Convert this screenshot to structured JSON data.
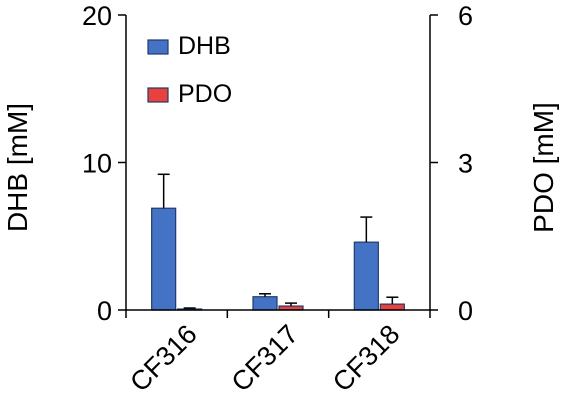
{
  "chart_data": {
    "type": "bar",
    "categories": [
      "CF316",
      "CF317",
      "CF318"
    ],
    "series": [
      {
        "name": "DHB",
        "axis": "left",
        "color": "#4472C4",
        "values": [
          6.9,
          0.9,
          4.6
        ],
        "error": [
          2.3,
          0.2,
          1.7
        ]
      },
      {
        "name": "PDO",
        "axis": "right",
        "color": "#E8423F",
        "values": [
          0.02,
          0.08,
          0.12
        ],
        "error": [
          0.02,
          0.06,
          0.14
        ]
      }
    ],
    "ylabel": "DHB [mM]",
    "y2label": "PDO [mM]",
    "ylim": [
      0,
      20
    ],
    "y2lim": [
      0,
      6
    ],
    "yticks": [
      "0",
      "10",
      "20"
    ],
    "y2ticks": [
      "0",
      "3",
      "6"
    ],
    "grid": false,
    "legend_position": "top-left"
  }
}
